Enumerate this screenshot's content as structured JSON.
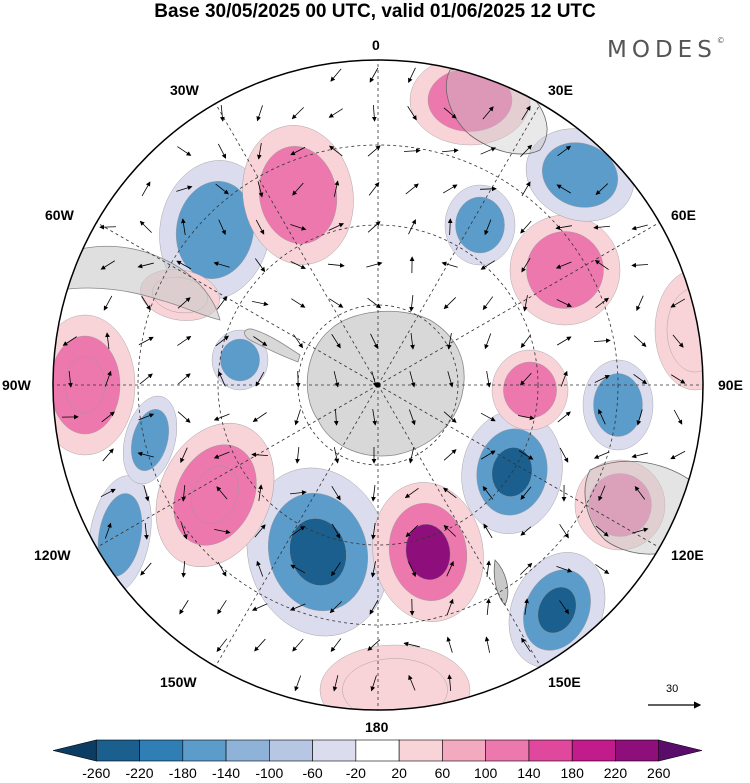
{
  "title": "Base 30/05/2025 00 UTC, valid 01/06/2025 12 UTC",
  "logo_text": "MODES",
  "logo_mark": "©",
  "longitude_labels": {
    "lon_0": "0",
    "lon_30e": "30E",
    "lon_60e": "60E",
    "lon_90e": "90E",
    "lon_120e": "120E",
    "lon_150e": "150E",
    "lon_180": "180",
    "lon_150w": "150W",
    "lon_120w": "120W",
    "lon_90w": "90W",
    "lon_60w": "60W",
    "lon_30w": "30W"
  },
  "reference_vector_label": "30",
  "colorbar": {
    "tick_labels": [
      "-260",
      "-220",
      "-180",
      "-140",
      "-100",
      "-60",
      "-20",
      "20",
      "60",
      "100",
      "140",
      "180",
      "220",
      "260"
    ],
    "colors": [
      "#0d3c63",
      "#1b5f8f",
      "#2f7fb6",
      "#5b9ccb",
      "#8fb3d8",
      "#b7c6e2",
      "#dcdcef",
      "#ffffff",
      "#f8d3d8",
      "#f3aac0",
      "#ec78ad",
      "#e0489d",
      "#c21b8c",
      "#8e0f7b",
      "#5a0c6b"
    ]
  },
  "anomaly_colors": {
    "positive_strong": "#8e0f7b",
    "positive": "#ec78ad",
    "positive_weak": "#f8d3d8",
    "negative_strong": "#1b5f8f",
    "negative": "#5b9ccb",
    "negative_weak": "#dcdcef",
    "land_grey": "#d8d8d8"
  }
}
